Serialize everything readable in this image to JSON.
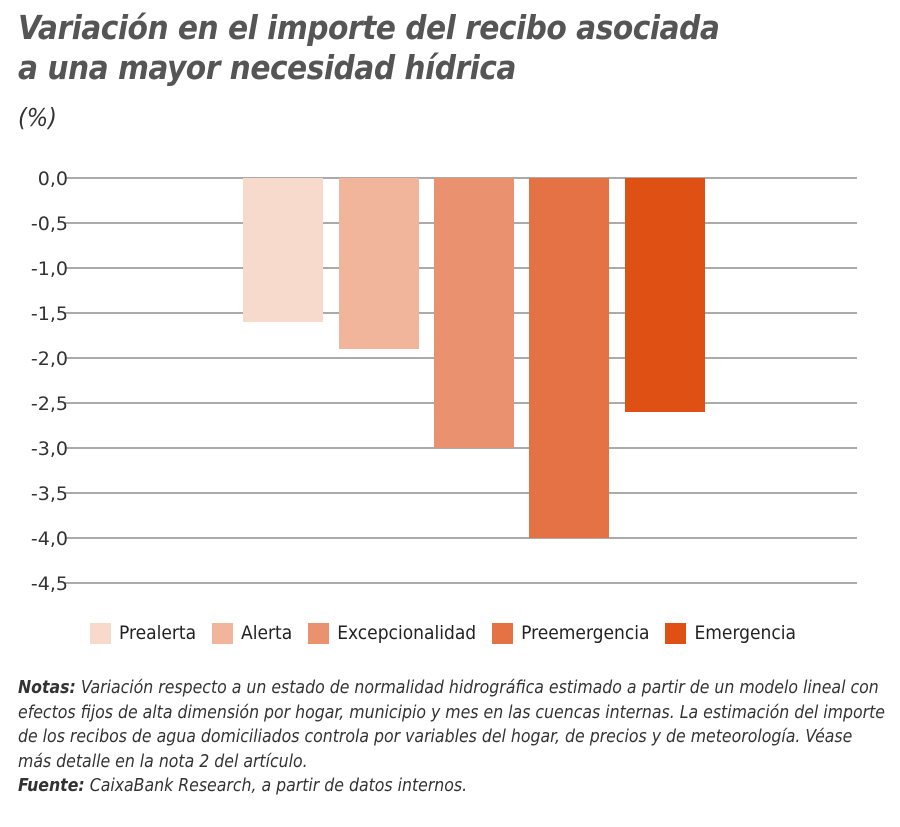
{
  "title_line1": "Variación en el importe del recibo asociada",
  "title_line2": "a una mayor necesidad hídrica",
  "unit": "(%)",
  "chart_data": {
    "type": "bar",
    "title": "Variación en el importe del recibo asociada a una mayor necesidad hídrica",
    "ylabel": "(%)",
    "categories": [
      "Prealerta",
      "Alerta",
      "Excepcionalidad",
      "Preemergencia",
      "Emergencia"
    ],
    "values": [
      -1.6,
      -1.9,
      -3.0,
      -4.0,
      -2.6
    ],
    "colors": [
      "#f8dacd",
      "#f1b59c",
      "#ea9270",
      "#e47245",
      "#df5014"
    ],
    "ylim": [
      -4.5,
      0
    ],
    "yticks": [
      "0,0",
      "-0,5",
      "-1,0",
      "-1,5",
      "-2,0",
      "-2,5",
      "-3,0",
      "-3,5",
      "-4,0",
      "-4,5"
    ],
    "grid": true,
    "legend": "bottom"
  },
  "notes_label": "Notas:",
  "notes_text": " Variación respecto a un estado de normalidad hidrográfica estimado a partir de un modelo lineal con efectos fijos de alta dimensión por hogar, municipio y mes en las cuencas internas. La estimación del importe de los recibos de agua domiciliados controla por variables del hogar, de precios y de meteorología. Véase más detalle en la nota 2 del artículo.",
  "source_label": "Fuente:",
  "source_text": " CaixaBank Research, a partir de datos internos."
}
